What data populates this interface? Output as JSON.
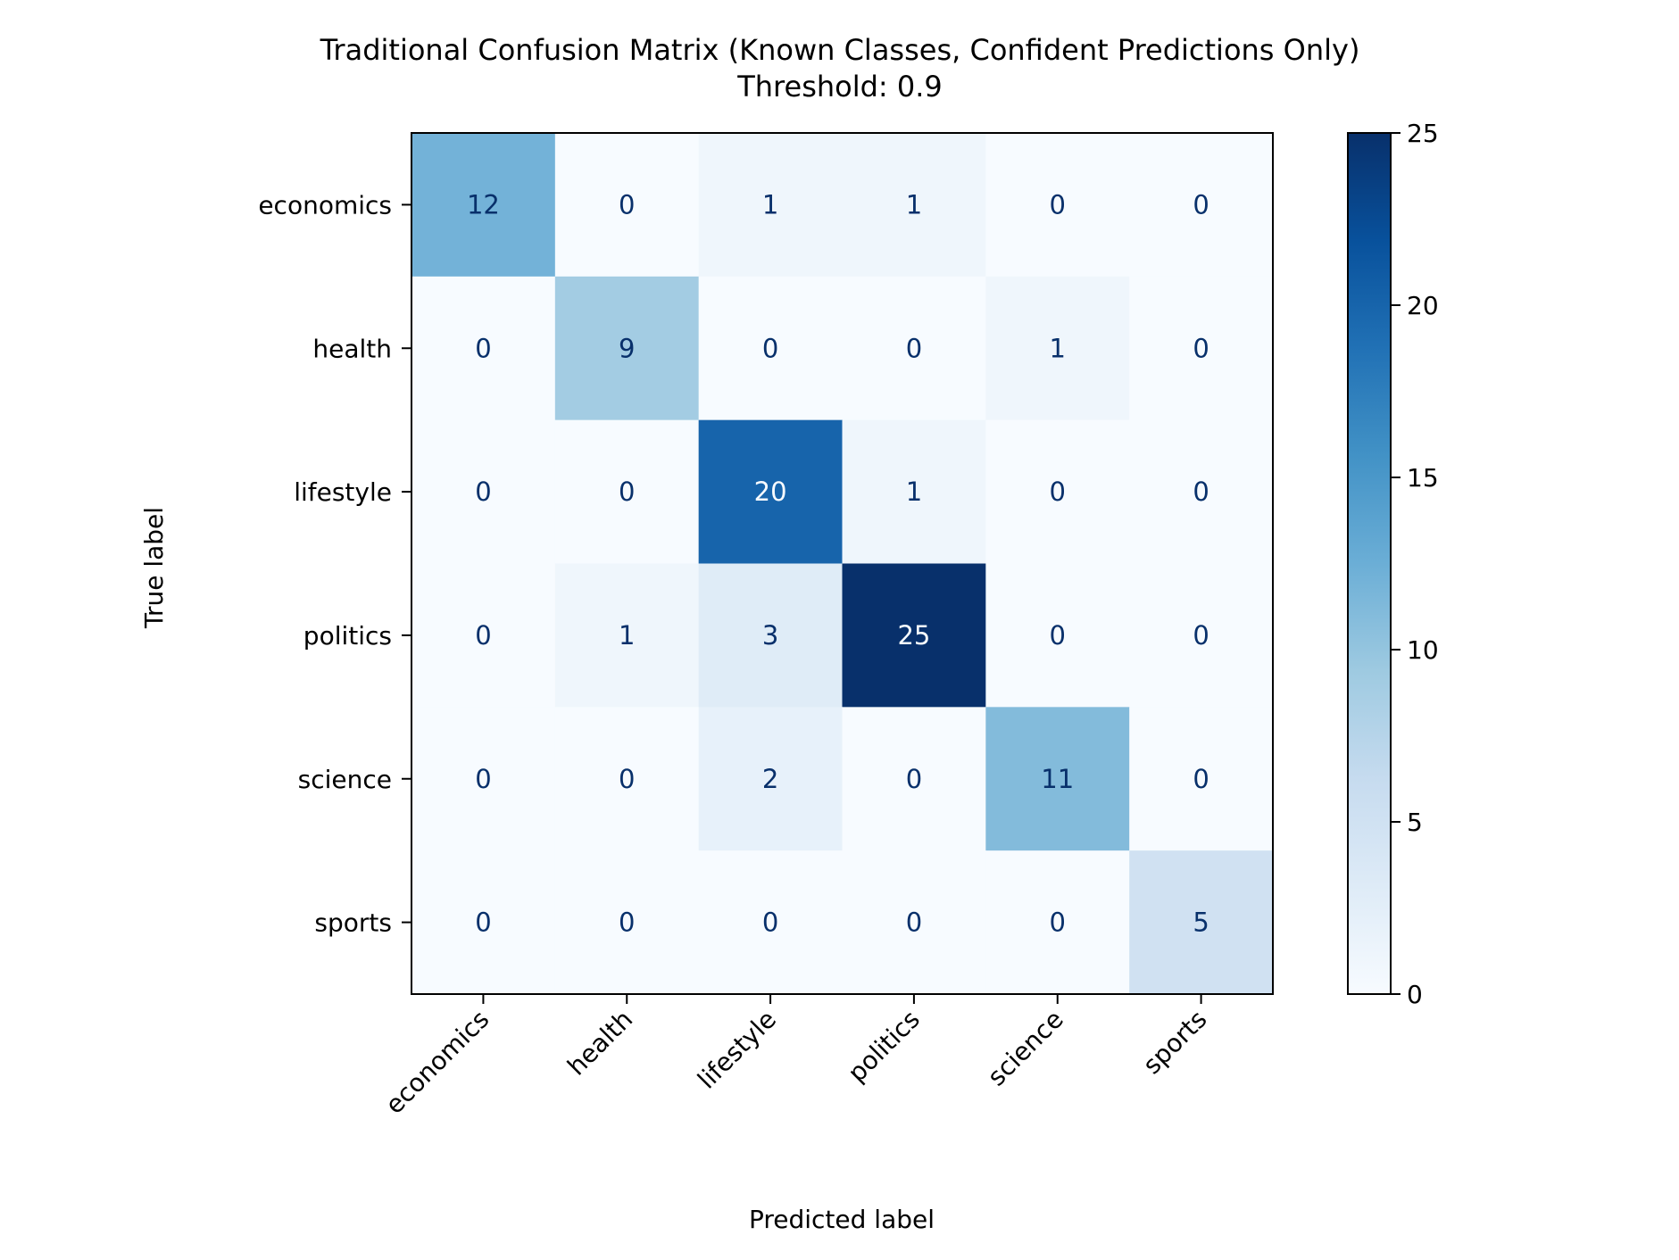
{
  "chart_data": {
    "type": "heatmap",
    "title": "Traditional Confusion Matrix (Known Classes, Confident Predictions Only)",
    "subtitle": "Threshold: 0.9",
    "xlabel": "Predicted label",
    "ylabel": "True label",
    "x_categories": [
      "economics",
      "health",
      "lifestyle",
      "politics",
      "science",
      "sports"
    ],
    "y_categories": [
      "economics",
      "health",
      "lifestyle",
      "politics",
      "science",
      "sports"
    ],
    "values": [
      [
        12,
        0,
        1,
        1,
        0,
        0
      ],
      [
        0,
        9,
        0,
        0,
        1,
        0
      ],
      [
        0,
        0,
        20,
        1,
        0,
        0
      ],
      [
        0,
        1,
        3,
        25,
        0,
        0
      ],
      [
        0,
        0,
        2,
        0,
        11,
        0
      ],
      [
        0,
        0,
        0,
        0,
        0,
        5
      ]
    ],
    "colorbar": {
      "range": [
        0,
        25
      ],
      "ticks": [
        "0",
        "5",
        "10",
        "15",
        "20",
        "25"
      ],
      "colormap": "Blues",
      "colors": [
        "#f7fbff",
        "#deebf7",
        "#c6dbef",
        "#9ecae1",
        "#6baed6",
        "#4292c6",
        "#2171b5",
        "#08519c",
        "#08306b"
      ]
    },
    "text_colors": {
      "dark": "#08306b",
      "light": "#f7fbff"
    },
    "grid": false,
    "legend": "colorbar-right"
  }
}
